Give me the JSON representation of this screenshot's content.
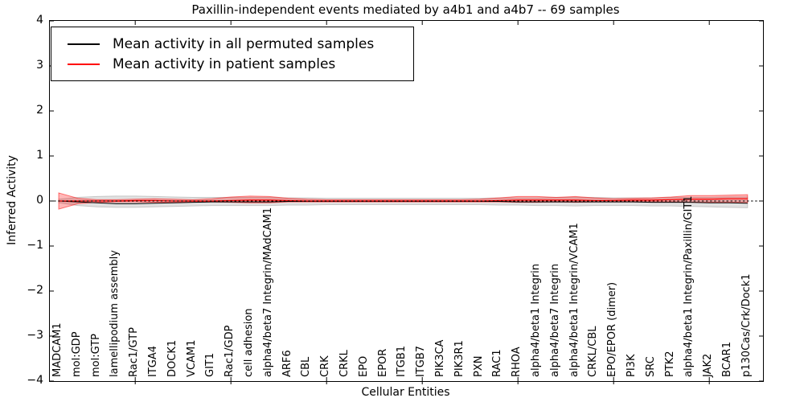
{
  "chart_data": {
    "type": "line",
    "title": "Paxillin-independent events mediated by a4b1 and a4b7 -- 69 samples",
    "xlabel": "Cellular Entities",
    "ylabel": "Inferred Activity",
    "ylim": [
      -4,
      4
    ],
    "ytick_values": [
      4,
      3,
      2,
      1,
      0,
      -1,
      -2,
      -3,
      -4
    ],
    "ytick_labels": [
      "4",
      "3",
      "2",
      "1",
      "0",
      "−1",
      "−2",
      "−3",
      "−4"
    ],
    "grid": false,
    "legend_position": "upper left",
    "zero_reference_line": {
      "style": "dashed",
      "color": "#000000",
      "y": 0
    },
    "top_tick_indices": [
      4,
      9,
      14,
      19,
      24,
      29,
      34
    ],
    "categories": [
      "MADCAM1",
      "mol:GDP",
      "mol:GTP",
      "lamellipodium assembly",
      "Rac1/GTP",
      "ITGA4",
      "DOCK1",
      "VCAM1",
      "GIT1",
      "Rac1/GDP",
      "cell adhesion",
      "alpha4/beta7 Integrin/MAdCAM1",
      "ARF6",
      "CBL",
      "CRK",
      "CRKL",
      "EPO",
      "EPOR",
      "ITGB1",
      "ITGB7",
      "PIK3CA",
      "PIK3R1",
      "PXN",
      "RAC1",
      "RHOA",
      "alpha4/beta1 Integrin",
      "alpha4/beta7 Integrin",
      "alpha4/beta1 Integrin/VCAM1",
      "CRKL/CBL",
      "EPO/EPOR (dimer)",
      "PI3K",
      "SRC",
      "PTK2",
      "alpha4/beta1 Integrin/Paxillin/GIT1",
      "JAK2",
      "BCAR1",
      "p130Cas/Crk/Dock1"
    ],
    "series": [
      {
        "name": "Mean activity in all permuted samples",
        "color": "#000000",
        "band_color": "#c8c8c8",
        "values": [
          0.0,
          -0.02,
          -0.04,
          -0.06,
          -0.06,
          -0.05,
          -0.04,
          -0.03,
          -0.02,
          -0.02,
          -0.02,
          -0.02,
          -0.01,
          -0.01,
          -0.01,
          -0.01,
          -0.01,
          -0.01,
          -0.01,
          -0.01,
          -0.01,
          -0.01,
          -0.01,
          -0.01,
          -0.02,
          -0.02,
          -0.02,
          -0.02,
          -0.02,
          -0.02,
          -0.02,
          -0.03,
          -0.03,
          -0.03,
          -0.04,
          -0.04,
          -0.05
        ],
        "band_upper": [
          0.04,
          0.08,
          0.1,
          0.11,
          0.11,
          0.1,
          0.09,
          0.08,
          0.08,
          0.08,
          0.08,
          0.08,
          0.07,
          0.07,
          0.06,
          0.06,
          0.06,
          0.06,
          0.06,
          0.06,
          0.06,
          0.06,
          0.06,
          0.07,
          0.07,
          0.07,
          0.08,
          0.08,
          0.08,
          0.07,
          0.07,
          0.07,
          0.08,
          0.08,
          0.08,
          0.09,
          0.09
        ],
        "band_lower": [
          -0.04,
          -0.1,
          -0.13,
          -0.14,
          -0.14,
          -0.13,
          -0.12,
          -0.11,
          -0.1,
          -0.1,
          -0.1,
          -0.1,
          -0.09,
          -0.09,
          -0.08,
          -0.08,
          -0.08,
          -0.08,
          -0.08,
          -0.08,
          -0.08,
          -0.08,
          -0.08,
          -0.09,
          -0.09,
          -0.1,
          -0.1,
          -0.11,
          -0.1,
          -0.1,
          -0.1,
          -0.11,
          -0.11,
          -0.12,
          -0.13,
          -0.14,
          -0.15
        ]
      },
      {
        "name": "Mean activity in patient samples",
        "color": "#ff0000",
        "band_color": "#ff9999",
        "values": [
          0.0,
          0.0,
          0.0,
          0.0,
          0.01,
          0.01,
          0.0,
          0.0,
          0.0,
          0.01,
          0.02,
          0.02,
          0.01,
          0.0,
          0.0,
          0.0,
          0.0,
          0.0,
          0.0,
          0.0,
          0.0,
          0.0,
          0.0,
          0.01,
          0.02,
          0.02,
          0.02,
          0.02,
          0.01,
          0.01,
          0.02,
          0.02,
          0.03,
          0.04,
          0.04,
          0.05,
          0.05
        ],
        "band_upper": [
          0.18,
          0.06,
          0.03,
          0.03,
          0.04,
          0.05,
          0.04,
          0.03,
          0.05,
          0.09,
          0.11,
          0.1,
          0.06,
          0.04,
          0.03,
          0.03,
          0.03,
          0.03,
          0.03,
          0.03,
          0.03,
          0.03,
          0.04,
          0.07,
          0.1,
          0.1,
          0.08,
          0.1,
          0.07,
          0.05,
          0.06,
          0.07,
          0.09,
          0.12,
          0.12,
          0.13,
          0.14
        ],
        "band_lower": [
          -0.18,
          -0.06,
          -0.03,
          -0.02,
          -0.02,
          -0.03,
          -0.03,
          -0.02,
          -0.02,
          -0.03,
          -0.04,
          -0.04,
          -0.02,
          -0.02,
          -0.02,
          -0.02,
          -0.02,
          -0.02,
          -0.02,
          -0.02,
          -0.02,
          -0.02,
          -0.02,
          -0.02,
          -0.03,
          -0.03,
          -0.02,
          -0.03,
          -0.02,
          -0.02,
          -0.02,
          -0.02,
          -0.02,
          -0.03,
          -0.03,
          -0.03,
          -0.04
        ]
      }
    ]
  }
}
